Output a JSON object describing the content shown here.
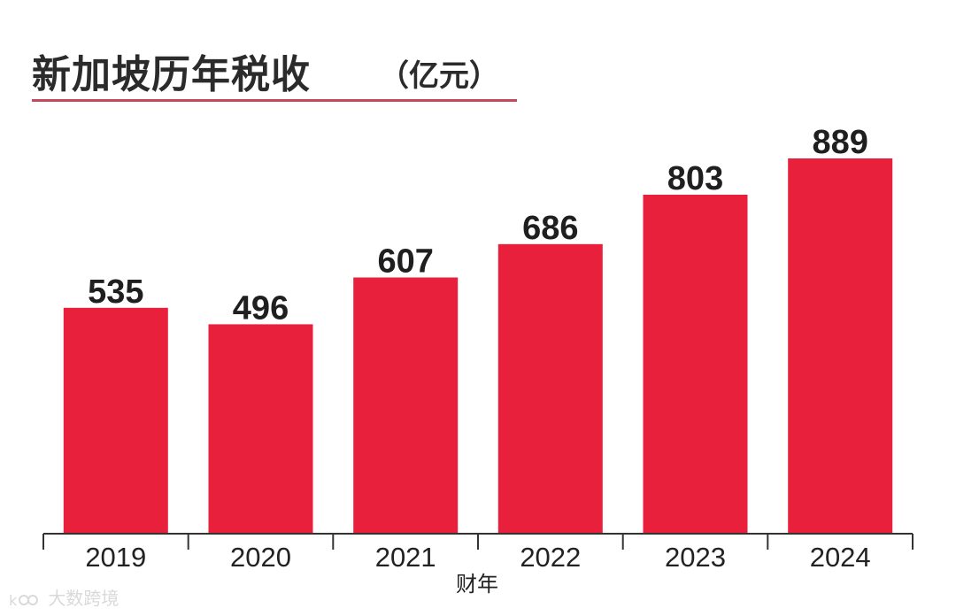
{
  "header": {
    "title": "新加坡历年税收",
    "unit": "（亿元）"
  },
  "watermark": {
    "text": "大数跨境"
  },
  "colors": {
    "bar": "#e8203c",
    "title_rule": "#c7475f",
    "text": "#222222"
  },
  "chart_data": {
    "type": "bar",
    "title": "新加坡历年税收（亿元）",
    "xlabel": "财年",
    "ylabel": "",
    "categories": [
      "2019",
      "2020",
      "2021",
      "2022",
      "2023",
      "2024"
    ],
    "values": [
      535,
      496,
      607,
      686,
      803,
      889
    ],
    "value_labels": [
      "535",
      "496",
      "607",
      "686",
      "803",
      "889"
    ],
    "ylim": [
      0,
      889
    ],
    "grid": false,
    "legend": "none"
  }
}
